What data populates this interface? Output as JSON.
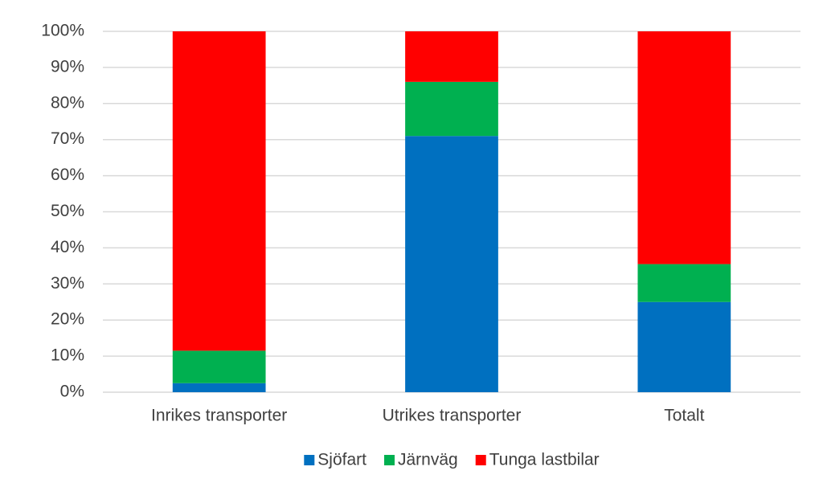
{
  "chart_data": {
    "type": "stacked_bar",
    "categories": [
      "Inrikes transporter",
      "Utrikes transporter",
      "Totalt"
    ],
    "series": [
      {
        "name": "Sjöfart",
        "color": "#0070c0",
        "values": [
          2.5,
          71,
          25
        ]
      },
      {
        "name": "Järnväg",
        "color": "#00b050",
        "values": [
          9,
          15,
          10.5
        ]
      },
      {
        "name": "Tunga lastbilar",
        "color": "#ff0000",
        "values": [
          88.5,
          14,
          64.5
        ]
      }
    ],
    "ylim": [
      0,
      100
    ],
    "yticks": [
      {
        "value": 0,
        "label": "0%"
      },
      {
        "value": 10,
        "label": "10%"
      },
      {
        "value": 20,
        "label": "20%"
      },
      {
        "value": 30,
        "label": "30%"
      },
      {
        "value": 40,
        "label": "40%"
      },
      {
        "value": 50,
        "label": "50%"
      },
      {
        "value": 60,
        "label": "60%"
      },
      {
        "value": 70,
        "label": "70%"
      },
      {
        "value": 80,
        "label": "80%"
      },
      {
        "value": 90,
        "label": "90%"
      },
      {
        "value": 100,
        "label": "100%"
      }
    ],
    "grid": true,
    "legend": "bottom"
  }
}
